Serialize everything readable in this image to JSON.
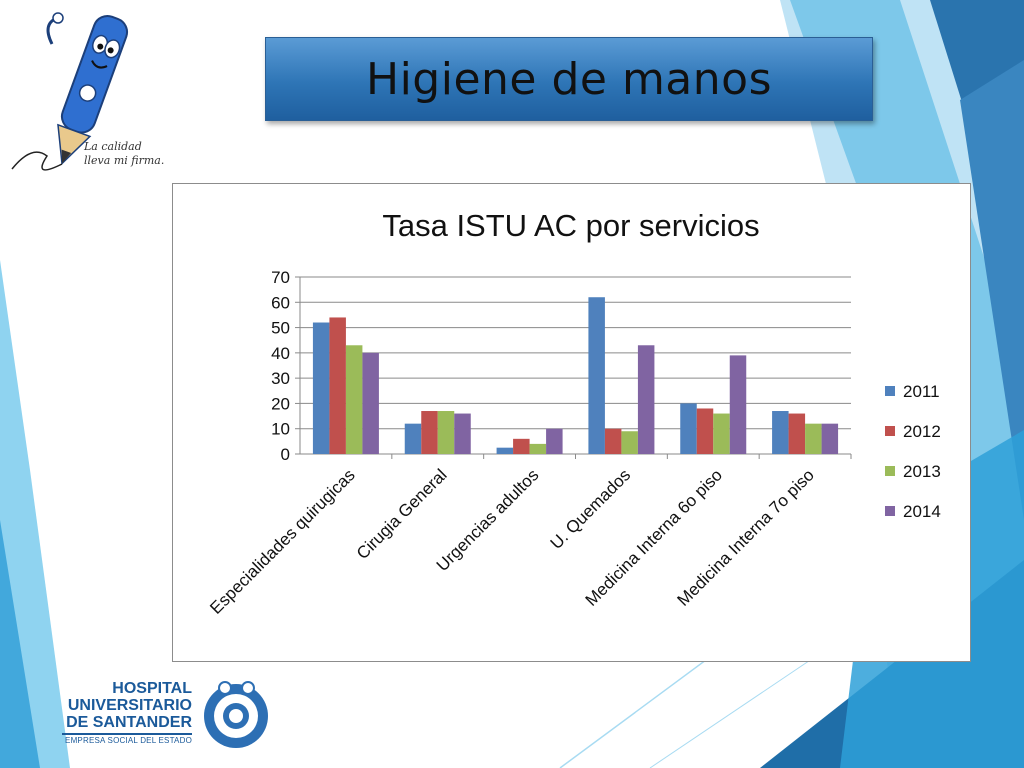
{
  "slide": {
    "title": "Higiene de manos",
    "slogan_line1": "La calidad",
    "slogan_line2": "lleva mi firma."
  },
  "hospital": {
    "line1": "HOSPITAL",
    "line2": "UNIVERSITARIO",
    "line3": "DE SANTANDER",
    "line4": "EMPRESA SOCIAL DEL ESTADO"
  },
  "colors": {
    "accent_blue": "#2e75b6",
    "series": [
      "#4f81bd",
      "#c0504d",
      "#9bbb59",
      "#8064a2"
    ]
  },
  "chart_data": {
    "type": "bar",
    "title": "Tasa ISTU AC por servicios",
    "categories": [
      "Especialidades quirugicas",
      "Cirugia General",
      "Urgencias adultos",
      "U. Quemados",
      "Medicina Interna 6o piso",
      "Medicina Interna 7o piso"
    ],
    "series": [
      {
        "name": "2011",
        "color": "#4f81bd",
        "values": [
          52,
          12,
          2.5,
          62,
          20,
          17
        ]
      },
      {
        "name": "2012",
        "color": "#c0504d",
        "values": [
          54,
          17,
          6,
          10,
          18,
          16
        ]
      },
      {
        "name": "2013",
        "color": "#9bbb59",
        "values": [
          43,
          17,
          4,
          9,
          16,
          12
        ]
      },
      {
        "name": "2014",
        "color": "#8064a2",
        "values": [
          40,
          16,
          10,
          43,
          39,
          12
        ]
      }
    ],
    "ylim": [
      0,
      70
    ],
    "yticks": [
      "0",
      "10",
      "20",
      "30",
      "40",
      "50",
      "60",
      "70"
    ],
    "grid": true,
    "legend_position": "right"
  }
}
